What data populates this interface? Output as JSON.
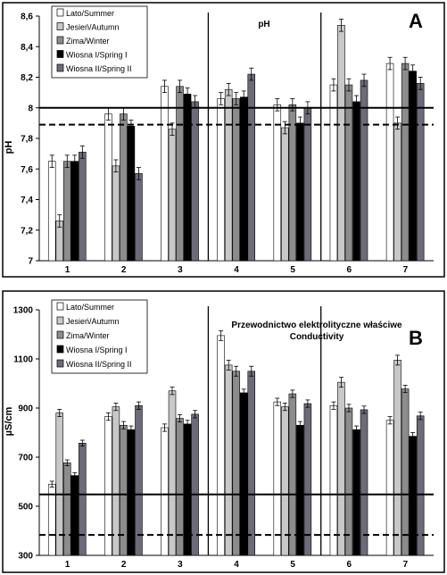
{
  "series_legend": [
    {
      "name": "Lato/Summer",
      "color": "#ffffff"
    },
    {
      "name": "Jesień/Autumn",
      "color": "#c8c8c8"
    },
    {
      "name": "Zima/Winter",
      "color": "#8c8c8c"
    },
    {
      "name": "Wiosna I/Spring I",
      "color": "#000000"
    },
    {
      "name": "Wiosna II/Spring II",
      "color": "#6e6a78"
    }
  ],
  "chart_data": [
    {
      "type": "bar",
      "panel_letter": "A",
      "title": "pH",
      "ylabel": "pH",
      "xlabel": "",
      "categories": [
        "1",
        "2",
        "3",
        "4",
        "5",
        "6",
        "7"
      ],
      "ylim": [
        7,
        8.6
      ],
      "yticks": [
        "7",
        "7,2",
        "7,4",
        "7,6",
        "7,8",
        "8",
        "8,2",
        "8,4",
        "8,6"
      ],
      "ytick_values": [
        7,
        7.2,
        7.4,
        7.6,
        7.8,
        8,
        8.2,
        8.4,
        8.6
      ],
      "grid": false,
      "legend_position": "top-left",
      "separators_after_category": [
        "3",
        "5"
      ],
      "reference_lines": [
        {
          "value": 8.0,
          "style": "solid"
        },
        {
          "value": 7.89,
          "style": "dashed"
        }
      ],
      "series": [
        {
          "name": "Lato/Summer",
          "values": [
            7.65,
            7.96,
            8.14,
            8.06,
            8.02,
            8.15,
            8.29
          ],
          "errors": [
            0.04,
            0.04,
            0.04,
            0.04,
            0.04,
            0.04,
            0.04
          ]
        },
        {
          "name": "Jesień/Autumn",
          "values": [
            7.26,
            7.62,
            7.86,
            8.12,
            7.87,
            8.54,
            7.9
          ],
          "errors": [
            0.04,
            0.04,
            0.04,
            0.04,
            0.04,
            0.04,
            0.04
          ]
        },
        {
          "name": "Zima/Winter",
          "values": [
            7.65,
            7.96,
            8.14,
            8.06,
            8.02,
            8.15,
            8.29
          ],
          "errors": [
            0.04,
            0.04,
            0.04,
            0.04,
            0.04,
            0.04,
            0.04
          ]
        },
        {
          "name": "Wiosna I/Spring I",
          "values": [
            7.65,
            7.88,
            8.09,
            8.07,
            7.9,
            8.04,
            8.24
          ],
          "errors": [
            0.04,
            0.04,
            0.04,
            0.04,
            0.04,
            0.04,
            0.04
          ]
        },
        {
          "name": "Wiosna II/Spring II",
          "values": [
            7.71,
            7.57,
            8.04,
            8.22,
            8.0,
            8.18,
            8.16
          ],
          "errors": [
            0.04,
            0.04,
            0.04,
            0.04,
            0.04,
            0.04,
            0.04
          ]
        }
      ]
    },
    {
      "type": "bar",
      "panel_letter": "B",
      "title": "Przewodnictwo elektrolityczne właściwe",
      "subtitle": "Conductivity",
      "ylabel": "µS/cm",
      "xlabel": "",
      "categories": [
        "1",
        "2",
        "3",
        "4",
        "5",
        "6",
        "7"
      ],
      "ylim": [
        300,
        1300
      ],
      "yticks": [
        "300",
        "500",
        "700",
        "900",
        "1100",
        "1300"
      ],
      "ytick_values": [
        300,
        500,
        700,
        900,
        1100,
        1300
      ],
      "grid": false,
      "legend_position": "top-left",
      "separators_after_category": [
        "3",
        "5"
      ],
      "reference_lines": [
        {
          "value": 548,
          "style": "solid"
        },
        {
          "value": 383,
          "style": "dashed"
        }
      ],
      "series": [
        {
          "name": "Lato/Summer",
          "values": [
            590,
            865,
            820,
            1195,
            925,
            910,
            850
          ],
          "errors": [
            12,
            15,
            15,
            20,
            15,
            15,
            15
          ]
        },
        {
          "name": "Jesień/Autumn",
          "values": [
            880,
            905,
            970,
            1075,
            905,
            1005,
            1095
          ],
          "errors": [
            15,
            15,
            15,
            20,
            15,
            20,
            20
          ]
        },
        {
          "name": "Zima/Winter",
          "values": [
            677,
            830,
            858,
            1050,
            958,
            900,
            978
          ],
          "errors": [
            12,
            15,
            15,
            20,
            15,
            15,
            15
          ]
        },
        {
          "name": "Wiosna I/Spring I",
          "values": [
            625,
            812,
            835,
            962,
            830,
            812,
            785
          ],
          "errors": [
            12,
            15,
            15,
            15,
            15,
            15,
            15
          ]
        },
        {
          "name": "Wiosna II/Spring II",
          "values": [
            757,
            910,
            875,
            1050,
            918,
            893,
            868
          ],
          "errors": [
            12,
            15,
            15,
            20,
            15,
            15,
            15
          ]
        }
      ]
    }
  ]
}
